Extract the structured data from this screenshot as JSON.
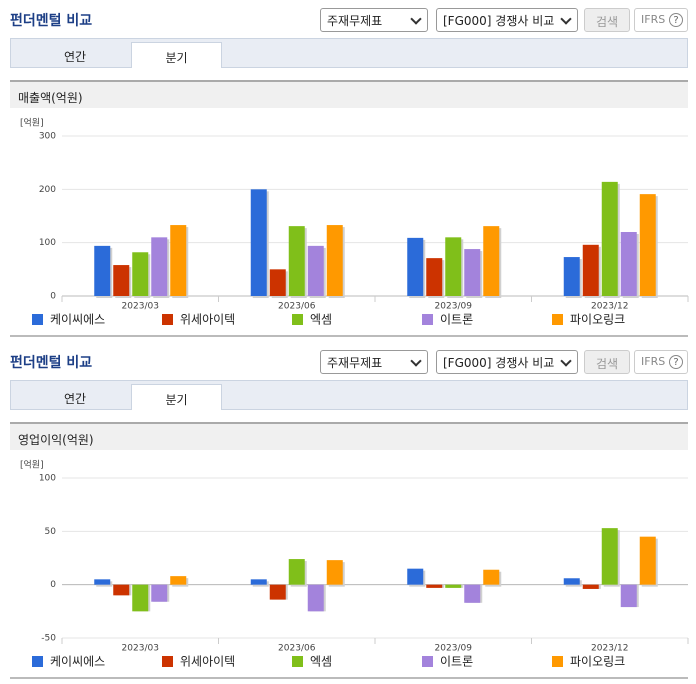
{
  "panels": [
    {
      "title": "펀더멘털 비교",
      "select1": "주재무제표",
      "select2": "[FG000] 경쟁사 비교",
      "button": "검색",
      "ifrs": "IFRS",
      "help": "?",
      "tabs": [
        "연간",
        "분기"
      ]
    },
    {
      "title": "펀더멘털 비교",
      "select1": "주재무제표",
      "select2": "[FG000] 경쟁사 비교",
      "button": "검색",
      "ifrs": "IFRS",
      "help": "?",
      "tabs": [
        "연간",
        "분기"
      ]
    }
  ],
  "chart_data": [
    {
      "type": "bar",
      "title": "매출액(억원)",
      "unit": "[억원]",
      "categories": [
        "2023/03",
        "2023/06",
        "2023/09",
        "2023/12"
      ],
      "series": [
        {
          "name": "케이씨에스",
          "color": "#2b6bd9",
          "values": [
            94,
            200,
            109,
            73
          ]
        },
        {
          "name": "위세아이텍",
          "color": "#cc3300",
          "values": [
            58,
            50,
            71,
            96
          ]
        },
        {
          "name": "엑셈",
          "color": "#80bf1a",
          "values": [
            82,
            131,
            110,
            214
          ]
        },
        {
          "name": "이트론",
          "color": "#a383dc",
          "values": [
            110,
            94,
            88,
            120
          ]
        },
        {
          "name": "파이오링크",
          "color": "#ff9900",
          "values": [
            133,
            133,
            131,
            191
          ]
        }
      ],
      "ylim": [
        0,
        300
      ],
      "yticks": [
        0,
        100,
        200,
        300
      ],
      "grid": true
    },
    {
      "type": "bar",
      "title": "영업이익(억원)",
      "unit": "[억원]",
      "categories": [
        "2023/03",
        "2023/06",
        "2023/09",
        "2023/12"
      ],
      "series": [
        {
          "name": "케이씨에스",
          "color": "#2b6bd9",
          "values": [
            5,
            5,
            15,
            6
          ]
        },
        {
          "name": "위세아이텍",
          "color": "#cc3300",
          "values": [
            -10,
            -14,
            -3,
            -4
          ]
        },
        {
          "name": "엑셈",
          "color": "#80bf1a",
          "values": [
            -25,
            24,
            -3,
            53
          ]
        },
        {
          "name": "이트론",
          "color": "#a383dc",
          "values": [
            -16,
            -25,
            -17,
            -21
          ]
        },
        {
          "name": "파이오링크",
          "color": "#ff9900",
          "values": [
            8,
            23,
            14,
            45
          ]
        }
      ],
      "ylim": [
        -50,
        100
      ],
      "yticks": [
        -50,
        0,
        50,
        100
      ],
      "grid": true
    }
  ]
}
